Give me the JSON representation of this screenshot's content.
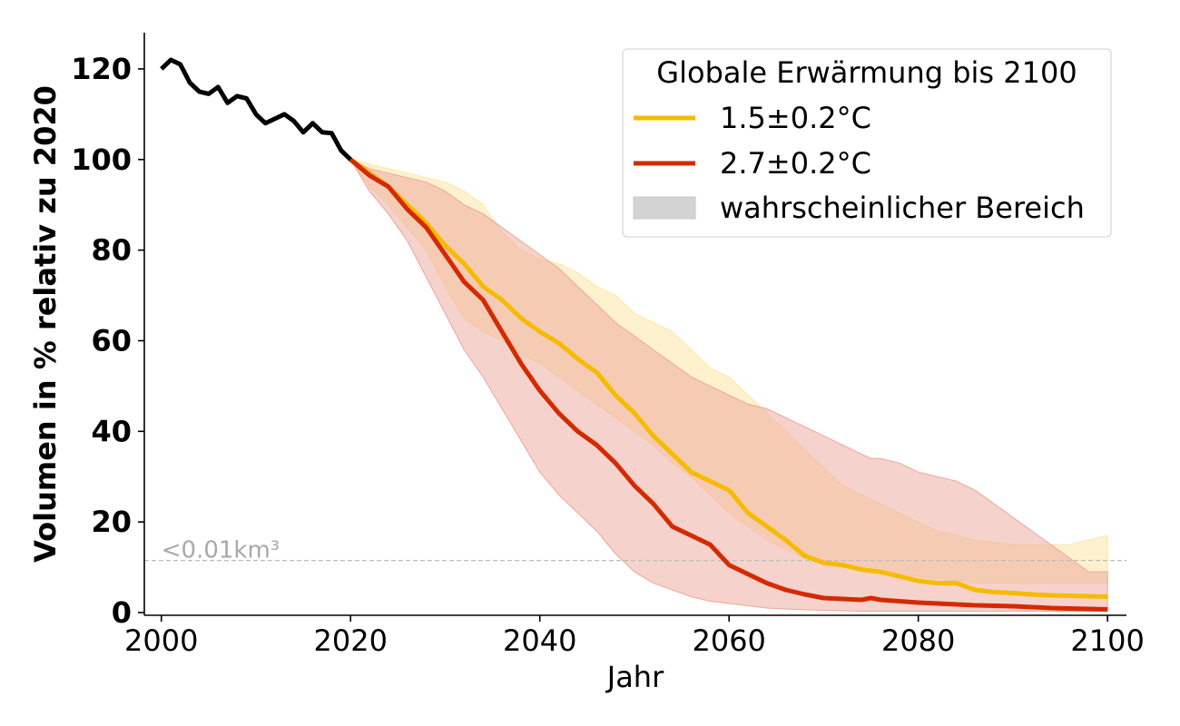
{
  "chart_data": {
    "type": "line",
    "xlabel": "Jahr",
    "ylabel": "Volumen in % relativ zu 2020",
    "xlim": [
      1998.2,
      2102
    ],
    "ylim": [
      -0.6,
      128
    ],
    "xticks": [
      2000,
      2020,
      2040,
      2060,
      2080,
      2100
    ],
    "yticks": [
      0,
      20,
      40,
      60,
      80,
      100,
      120
    ],
    "grid": false,
    "legend": {
      "title": "Globale Erwärmung bis 2100",
      "position": "top-right",
      "entries": [
        {
          "label": "1.5±0.2°C",
          "color": "#f5bb00",
          "kind": "line"
        },
        {
          "label": "2.7±0.2°C",
          "color": "#d42a00",
          "kind": "line"
        },
        {
          "label": "wahrscheinlicher Bereich",
          "color": "#d3d3d3",
          "kind": "patch"
        }
      ]
    },
    "threshold": {
      "label": "<0.01km³",
      "value": 11.5
    },
    "observed": {
      "color": "#000000",
      "x": [
        2000,
        2001,
        2002,
        2003,
        2004,
        2005,
        2006,
        2007,
        2008,
        2009,
        2010,
        2011,
        2012,
        2013,
        2014,
        2015,
        2016,
        2017,
        2018,
        2019,
        2020
      ],
      "y": [
        120,
        122,
        121,
        117,
        115,
        114.5,
        116,
        112.5,
        114,
        113.5,
        110,
        108,
        109,
        110,
        108.5,
        106,
        108,
        106,
        105.8,
        102,
        100
      ]
    },
    "series": [
      {
        "name": "1.5±0.2°C",
        "color": "#f5bb00",
        "fill": "#fde6a6",
        "x": [
          2020,
          2022,
          2024,
          2026,
          2028,
          2030,
          2032,
          2034,
          2036,
          2038,
          2040,
          2042,
          2044,
          2046,
          2048,
          2050,
          2052,
          2054,
          2056,
          2058,
          2060,
          2062,
          2064,
          2066,
          2068,
          2070,
          2072,
          2074,
          2076,
          2078,
          2080,
          2082,
          2084,
          2086,
          2088,
          2090,
          2092,
          2094,
          2096,
          2098,
          2100
        ],
        "y": [
          100,
          97,
          94,
          90,
          86,
          81,
          77,
          72,
          69,
          65,
          62,
          59.5,
          56,
          53,
          48,
          44,
          39,
          35,
          31,
          29,
          27,
          22,
          19,
          16,
          12.5,
          11,
          10.5,
          9.5,
          9,
          8,
          7,
          6.5,
          6.5,
          5,
          4.5,
          4.3,
          4,
          3.8,
          3.7,
          3.6,
          3.5
        ],
        "upper": [
          100,
          99,
          98,
          97,
          96,
          95,
          93,
          90,
          84,
          80,
          78,
          77,
          75,
          72,
          70,
          66,
          64,
          62,
          58,
          54,
          52,
          48,
          44,
          40,
          36,
          32,
          28,
          26,
          24,
          22,
          20,
          18,
          17,
          16,
          15.5,
          15,
          15,
          15,
          15,
          16,
          17
        ],
        "lower": [
          100,
          94,
          90,
          85,
          80,
          72,
          65,
          62,
          60,
          57,
          55,
          52,
          49,
          46,
          43,
          40,
          37,
          33,
          30,
          26,
          22,
          19,
          16,
          14,
          12,
          11,
          10,
          9.5,
          9,
          8.5,
          8,
          7.5,
          7,
          6.5,
          6.5,
          6.5,
          6.5,
          6.5,
          6.5,
          6.5,
          6.5
        ]
      },
      {
        "name": "2.7±0.2°C",
        "color": "#d42a00",
        "fill": "#eea59a",
        "x": [
          2020,
          2022,
          2024,
          2026,
          2028,
          2030,
          2032,
          2034,
          2036,
          2038,
          2040,
          2042,
          2044,
          2046,
          2048,
          2050,
          2052,
          2054,
          2056,
          2058,
          2060,
          2062,
          2064,
          2066,
          2068,
          2070,
          2072,
          2074,
          2075,
          2076,
          2078,
          2080,
          2082,
          2084,
          2086,
          2088,
          2090,
          2092,
          2094,
          2096,
          2098,
          2100
        ],
        "y": [
          100,
          96.5,
          94,
          89,
          85,
          79,
          73,
          69,
          62,
          55,
          49,
          44,
          40,
          37,
          33,
          28,
          24,
          19,
          17,
          15,
          10.5,
          8.5,
          6.5,
          5,
          4,
          3.2,
          3,
          2.8,
          3.2,
          2.8,
          2.5,
          2.2,
          2,
          1.8,
          1.6,
          1.5,
          1.4,
          1.2,
          1,
          0.9,
          0.8,
          0.7
        ],
        "upper": [
          100,
          98,
          97,
          96,
          95,
          93,
          90,
          88,
          85,
          82,
          79,
          76,
          72,
          68,
          64,
          61,
          58,
          55,
          52,
          50,
          48,
          46,
          45,
          43,
          41,
          39,
          37,
          35,
          34,
          34,
          33,
          31,
          30,
          29,
          27,
          24,
          21,
          18,
          15,
          12,
          9,
          9
        ],
        "lower": [
          100,
          93,
          88,
          82,
          74,
          66,
          58,
          52,
          45,
          38,
          31,
          26,
          22,
          18,
          13,
          9,
          6.5,
          5,
          3.5,
          2.5,
          2,
          1.5,
          1,
          0.8,
          0.6,
          0.5,
          0.4,
          0.3,
          0.3,
          0.3,
          0.3,
          0.3,
          0.3,
          0.3,
          0.3,
          0.3,
          0.3,
          0.3,
          0.3,
          0.3,
          0.3,
          0.3
        ]
      }
    ]
  }
}
